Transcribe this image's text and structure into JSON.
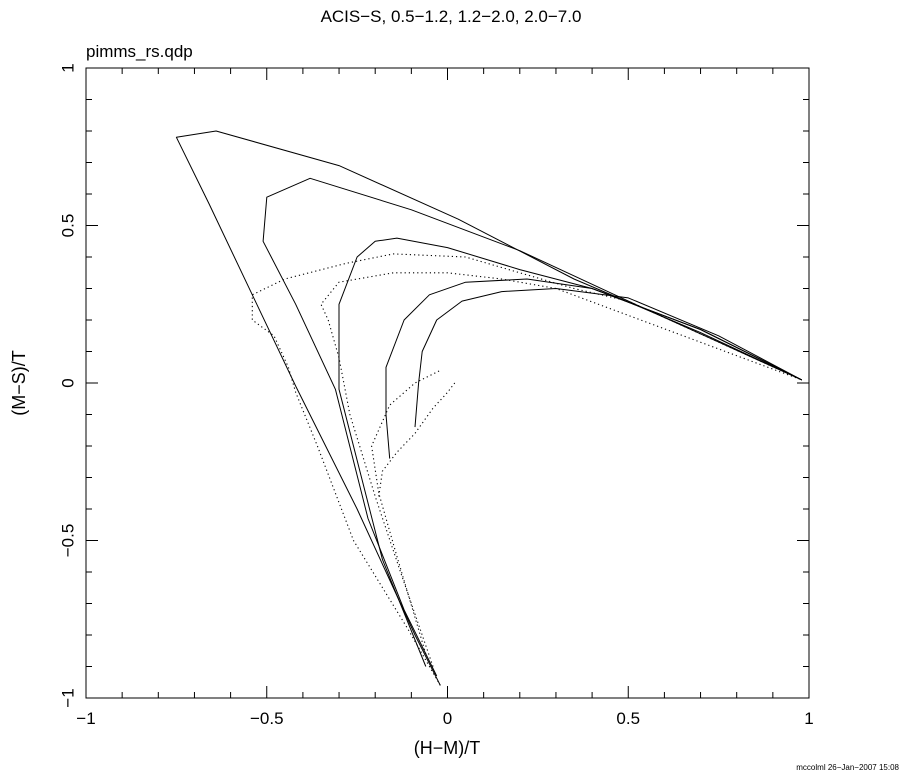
{
  "chart_data": {
    "type": "line",
    "title": "ACIS−S, 0.5−1.2, 1.2−2.0, 2.0−7.0",
    "subtitle": "pimms_rs.qdp",
    "xlabel": "(H−M)/T",
    "ylabel": "(M−S)/T",
    "xlim": [
      -1,
      1
    ],
    "ylim": [
      -1,
      1
    ],
    "xticks": [
      {
        "value": -1,
        "label": "−1"
      },
      {
        "value": -0.5,
        "label": "−0.5"
      },
      {
        "value": 0,
        "label": "0"
      },
      {
        "value": 0.5,
        "label": "0.5"
      },
      {
        "value": 1,
        "label": "1"
      }
    ],
    "yticks": [
      {
        "value": -1,
        "label": "−1"
      },
      {
        "value": -0.5,
        "label": "−0.5"
      },
      {
        "value": 0,
        "label": "0"
      },
      {
        "value": 0.5,
        "label": "0.5"
      },
      {
        "value": 1,
        "label": "1"
      }
    ],
    "footer": "mccolml 26−Jan−2007 15:08",
    "grid": false,
    "series": [
      {
        "style": "solid",
        "points": [
          [
            -0.02,
            -0.96
          ],
          [
            -0.09,
            -0.8
          ],
          [
            -0.25,
            -0.4
          ],
          [
            -0.42,
            -0.01
          ],
          [
            -0.66,
            0.57
          ],
          [
            -0.75,
            0.78
          ],
          [
            -0.64,
            0.8
          ],
          [
            -0.3,
            0.69
          ],
          [
            0.03,
            0.52
          ],
          [
            0.35,
            0.33
          ],
          [
            0.7,
            0.16
          ],
          [
            0.98,
            0.01
          ]
        ]
      },
      {
        "style": "solid",
        "points": [
          [
            -0.03,
            -0.93
          ],
          [
            -0.12,
            -0.72
          ],
          [
            -0.22,
            -0.43
          ],
          [
            -0.31,
            -0.02
          ],
          [
            -0.42,
            0.25
          ],
          [
            -0.51,
            0.45
          ],
          [
            -0.5,
            0.59
          ],
          [
            -0.38,
            0.65
          ],
          [
            -0.1,
            0.55
          ],
          [
            0.2,
            0.42
          ],
          [
            0.5,
            0.26
          ],
          [
            0.75,
            0.13
          ],
          [
            0.98,
            0.01
          ]
        ]
      },
      {
        "style": "solid",
        "points": [
          [
            -0.06,
            -0.9
          ],
          [
            -0.18,
            -0.56
          ],
          [
            -0.3,
            -0.02
          ],
          [
            -0.3,
            0.25
          ],
          [
            -0.25,
            0.4
          ],
          [
            -0.2,
            0.45
          ],
          [
            -0.14,
            0.46
          ],
          [
            0.0,
            0.43
          ],
          [
            0.2,
            0.36
          ],
          [
            0.4,
            0.3
          ],
          [
            0.7,
            0.17
          ],
          [
            0.98,
            0.01
          ]
        ]
      },
      {
        "style": "solid",
        "points": [
          [
            -0.16,
            -0.24
          ],
          [
            -0.17,
            -0.1
          ],
          [
            -0.17,
            0.05
          ],
          [
            -0.12,
            0.2
          ],
          [
            -0.05,
            0.28
          ],
          [
            0.05,
            0.32
          ],
          [
            0.22,
            0.33
          ],
          [
            0.4,
            0.3
          ],
          [
            0.7,
            0.17
          ],
          [
            0.98,
            0.01
          ]
        ]
      },
      {
        "style": "solid",
        "points": [
          [
            -0.09,
            -0.14
          ],
          [
            -0.08,
            0.0
          ],
          [
            -0.07,
            0.1
          ],
          [
            -0.03,
            0.2
          ],
          [
            0.04,
            0.26
          ],
          [
            0.15,
            0.29
          ],
          [
            0.3,
            0.3
          ],
          [
            0.5,
            0.27
          ],
          [
            0.75,
            0.15
          ],
          [
            0.98,
            0.01
          ]
        ]
      },
      {
        "style": "dotted",
        "points": [
          [
            -0.02,
            -0.96
          ],
          [
            -0.11,
            -0.78
          ],
          [
            -0.26,
            -0.5
          ],
          [
            -0.36,
            -0.2
          ],
          [
            -0.42,
            -0.03
          ],
          [
            -0.44,
            0.05
          ],
          [
            -0.48,
            0.15
          ],
          [
            -0.54,
            0.2
          ],
          [
            -0.54,
            0.28
          ],
          [
            -0.45,
            0.33
          ],
          [
            -0.28,
            0.38
          ],
          [
            -0.15,
            0.41
          ],
          [
            0.05,
            0.4
          ],
          [
            0.2,
            0.35
          ],
          [
            0.35,
            0.3
          ],
          [
            0.5,
            0.26
          ],
          [
            0.98,
            0.01
          ]
        ]
      },
      {
        "style": "dotted",
        "points": [
          [
            -0.04,
            -0.9
          ],
          [
            -0.13,
            -0.6
          ],
          [
            -0.2,
            -0.36
          ],
          [
            -0.27,
            -0.1
          ],
          [
            -0.3,
            0.08
          ],
          [
            -0.33,
            0.2
          ],
          [
            -0.35,
            0.25
          ],
          [
            -0.3,
            0.32
          ],
          [
            -0.15,
            0.35
          ],
          [
            0.0,
            0.35
          ],
          [
            0.15,
            0.33
          ],
          [
            0.3,
            0.3
          ],
          [
            0.98,
            0.01
          ]
        ]
      },
      {
        "style": "dotted",
        "points": [
          [
            -0.06,
            -0.86
          ],
          [
            -0.14,
            -0.55
          ],
          [
            -0.19,
            -0.35
          ],
          [
            -0.21,
            -0.2
          ],
          [
            -0.16,
            -0.07
          ],
          [
            -0.09,
            0.0
          ],
          [
            -0.02,
            0.04
          ]
        ]
      },
      {
        "style": "dotted",
        "points": [
          [
            -0.19,
            -0.36
          ],
          [
            -0.18,
            -0.28
          ],
          [
            -0.14,
            -0.22
          ],
          [
            -0.09,
            -0.16
          ],
          [
            -0.04,
            -0.08
          ],
          [
            0.0,
            -0.03
          ],
          [
            0.02,
            0.0
          ]
        ]
      }
    ]
  }
}
